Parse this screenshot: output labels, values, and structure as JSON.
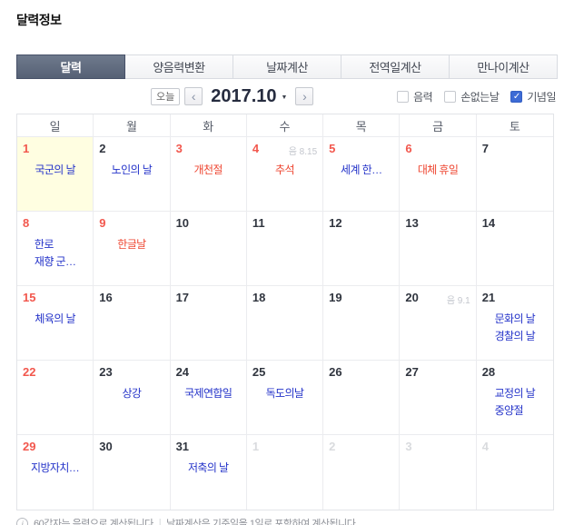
{
  "page_title": "달력정보",
  "tabs": [
    {
      "label": "달력",
      "active": true
    },
    {
      "label": "양음력변환",
      "active": false
    },
    {
      "label": "날짜계산",
      "active": false
    },
    {
      "label": "전역일계산",
      "active": false
    },
    {
      "label": "만나이계산",
      "active": false
    }
  ],
  "toolbar": {
    "today_button": "오늘",
    "prev_button": "‹",
    "next_button": "›",
    "current_date": "2017.10",
    "dropdown_caret": "▼",
    "check_icon": "✓",
    "checkboxes": [
      {
        "label": "음력",
        "checked": false
      },
      {
        "label": "손없는날",
        "checked": false
      },
      {
        "label": "기념일",
        "checked": true
      }
    ]
  },
  "weekdays": [
    "일",
    "월",
    "화",
    "수",
    "목",
    "금",
    "토"
  ],
  "weeks": [
    [
      {
        "day": "1",
        "color": "red",
        "today": true,
        "labels": [
          {
            "text": "국군의 날",
            "color": "blue"
          }
        ]
      },
      {
        "day": "2",
        "color": "dark",
        "labels": [
          {
            "text": "노인의 날",
            "color": "blue"
          }
        ]
      },
      {
        "day": "3",
        "color": "red",
        "labels": [
          {
            "text": "개천절",
            "color": "red"
          }
        ]
      },
      {
        "day": "4",
        "color": "red",
        "lunar": "음 8.15",
        "labels": [
          {
            "text": "추석",
            "color": "red"
          }
        ]
      },
      {
        "day": "5",
        "color": "red",
        "labels": [
          {
            "text": "세계 한…",
            "color": "blue"
          }
        ]
      },
      {
        "day": "6",
        "color": "red",
        "labels": [
          {
            "text": "대체 휴일",
            "color": "red"
          }
        ]
      },
      {
        "day": "7",
        "color": "dark",
        "labels": []
      }
    ],
    [
      {
        "day": "8",
        "color": "red",
        "labels": [
          {
            "text": "한로",
            "color": "blue"
          },
          {
            "text": "재향 군…",
            "color": "blue"
          }
        ]
      },
      {
        "day": "9",
        "color": "red",
        "labels": [
          {
            "text": "한글날",
            "color": "red"
          }
        ]
      },
      {
        "day": "10",
        "color": "dark",
        "labels": []
      },
      {
        "day": "11",
        "color": "dark",
        "labels": []
      },
      {
        "day": "12",
        "color": "dark",
        "labels": []
      },
      {
        "day": "13",
        "color": "dark",
        "labels": []
      },
      {
        "day": "14",
        "color": "dark",
        "labels": []
      }
    ],
    [
      {
        "day": "15",
        "color": "red",
        "labels": [
          {
            "text": "체육의 날",
            "color": "blue"
          }
        ]
      },
      {
        "day": "16",
        "color": "dark",
        "labels": []
      },
      {
        "day": "17",
        "color": "dark",
        "labels": []
      },
      {
        "day": "18",
        "color": "dark",
        "labels": []
      },
      {
        "day": "19",
        "color": "dark",
        "labels": []
      },
      {
        "day": "20",
        "color": "dark",
        "lunar": "음 9.1",
        "labels": []
      },
      {
        "day": "21",
        "color": "dark",
        "labels": [
          {
            "text": "문화의 날",
            "color": "blue"
          },
          {
            "text": "경찰의 날",
            "color": "blue"
          }
        ]
      }
    ],
    [
      {
        "day": "22",
        "color": "red",
        "labels": []
      },
      {
        "day": "23",
        "color": "dark",
        "labels": [
          {
            "text": "상강",
            "color": "blue"
          }
        ]
      },
      {
        "day": "24",
        "color": "dark",
        "labels": [
          {
            "text": "국제연합일",
            "color": "blue"
          }
        ]
      },
      {
        "day": "25",
        "color": "dark",
        "labels": [
          {
            "text": "독도의날",
            "color": "blue"
          }
        ]
      },
      {
        "day": "26",
        "color": "dark",
        "labels": []
      },
      {
        "day": "27",
        "color": "dark",
        "labels": []
      },
      {
        "day": "28",
        "color": "dark",
        "labels": [
          {
            "text": "교정의 날",
            "color": "blue"
          },
          {
            "text": "중양절",
            "color": "blue"
          }
        ]
      }
    ],
    [
      {
        "day": "29",
        "color": "red",
        "labels": [
          {
            "text": "지방자치…",
            "color": "blue"
          }
        ]
      },
      {
        "day": "30",
        "color": "dark",
        "labels": []
      },
      {
        "day": "31",
        "color": "dark",
        "labels": [
          {
            "text": "저축의 날",
            "color": "blue"
          }
        ]
      },
      {
        "day": "1",
        "color": "muted",
        "labels": []
      },
      {
        "day": "2",
        "color": "muted",
        "labels": []
      },
      {
        "day": "3",
        "color": "muted",
        "labels": []
      },
      {
        "day": "4",
        "color": "muted",
        "labels": []
      }
    ]
  ],
  "footer": {
    "info_icon": "i",
    "note1": "60갑자는 음력으로 계산됩니다",
    "separator": "|",
    "note2": "날짜계산은 기준일을 1일로 포함하여 계산됩니다"
  },
  "colors": {
    "holiday_red": "#f2574d",
    "label_red": "#ee4631",
    "anniversary_blue": "#2433c9",
    "today_bg": "#fffee1",
    "lunar_gray": "#c3c6cd",
    "muted_day": "#d9dbde"
  }
}
